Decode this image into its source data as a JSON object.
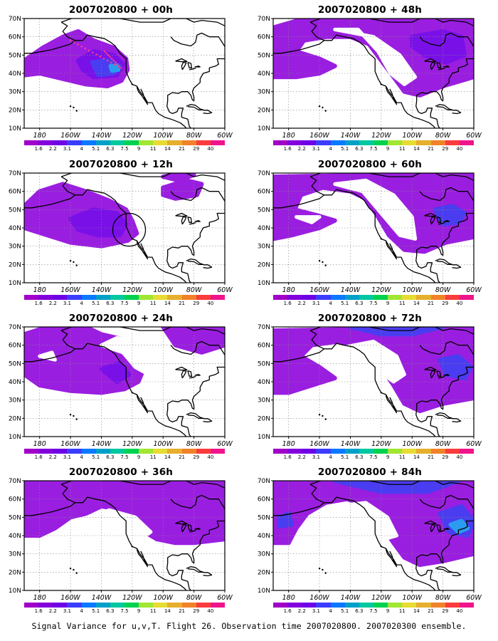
{
  "panels": [
    {
      "id": "p00",
      "title": "2007020800 + 00h",
      "col": 0,
      "row": 0,
      "marker": "dots"
    },
    {
      "id": "p48",
      "title": "2007020800 + 48h",
      "col": 1,
      "row": 0,
      "marker": null
    },
    {
      "id": "p12",
      "title": "2007020800 + 12h",
      "col": 0,
      "row": 1,
      "marker": "circle"
    },
    {
      "id": "p60",
      "title": "2007020800 + 60h",
      "col": 1,
      "row": 1,
      "marker": null
    },
    {
      "id": "p24",
      "title": "2007020800 + 24h",
      "col": 0,
      "row": 2,
      "marker": null
    },
    {
      "id": "p72",
      "title": "2007020800 + 72h",
      "col": 1,
      "row": 2,
      "marker": null
    },
    {
      "id": "p36",
      "title": "2007020800 + 36h",
      "col": 0,
      "row": 3,
      "marker": null
    },
    {
      "id": "p84",
      "title": "2007020800 + 84h",
      "col": 1,
      "row": 3,
      "marker": null
    }
  ],
  "lat_labels": [
    "10N",
    "20N",
    "30N",
    "40N",
    "50N",
    "60N",
    "70N"
  ],
  "lon_labels": [
    "180",
    "160W",
    "140W",
    "120W",
    "100W",
    "80W",
    "60W"
  ],
  "colorbar": {
    "labels": [
      "1.6",
      "2.2",
      "3.1",
      "4",
      "5.1",
      "6.3",
      "7.5",
      "9",
      "11",
      "14",
      "21",
      "29",
      "40"
    ],
    "colors": [
      "#a000c8",
      "#8200dc",
      "#6e00e6",
      "#3c3cff",
      "#0a78ff",
      "#00a0c8",
      "#00c8a0",
      "#00d250",
      "#a0e632",
      "#e6dc32",
      "#e6af2d",
      "#f08228",
      "#fa3c3c",
      "#f0148c"
    ]
  },
  "footer": "Signal Variance for u,v,T. Flight 26. Observation time 2007020800. 2007020300 ensemble.",
  "field_colors": {
    "low": "#9a1ee0",
    "mid": "#7a10e8",
    "high": "#4a3cf0",
    "peak": "#2a9cf0"
  }
}
